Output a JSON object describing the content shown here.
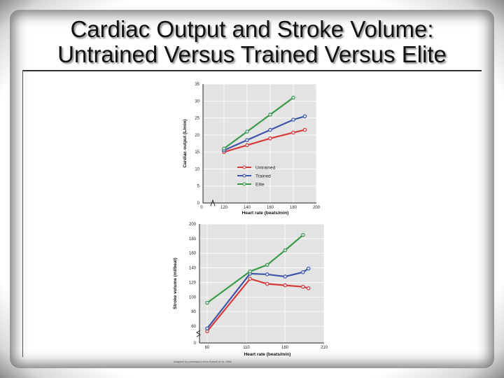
{
  "slide": {
    "title_line1": "Cardiac Output and Stroke Volume:",
    "title_line2": "Untrained Versus Trained Versus Elite",
    "credit": "Adapted by permission from Rowell et al. 1986"
  },
  "colors": {
    "untrained": "#d63a3a",
    "trained": "#3f55a8",
    "elite": "#3b9a4a",
    "plot_bg": "#e3e3e3"
  },
  "chart_data": [
    {
      "type": "line",
      "xlabel": "Heart rate (beats/min)",
      "ylabel": "Cardiac output (L/min)",
      "xlim": [
        100,
        200
      ],
      "ylim": [
        0,
        35
      ],
      "x_ticks": [
        "0",
        "120",
        "140",
        "160",
        "180",
        "200"
      ],
      "y_ticks": [
        "0",
        "5",
        "10",
        "15",
        "20",
        "25",
        "30",
        "35"
      ],
      "axis_break": true,
      "grid": true,
      "legend_position": "center",
      "series": [
        {
          "name": "Untrained",
          "color": "#d63a3a",
          "points": [
            [
              120,
              15.0
            ],
            [
              140,
              17.0
            ],
            [
              160,
              19.0
            ],
            [
              180,
              20.7
            ],
            [
              190,
              21.5
            ]
          ]
        },
        {
          "name": "Trained",
          "color": "#3f55a8",
          "points": [
            [
              120,
              15.5
            ],
            [
              140,
              18.5
            ],
            [
              160,
              21.5
            ],
            [
              180,
              24.5
            ],
            [
              190,
              25.5
            ]
          ]
        },
        {
          "name": "Elite",
          "color": "#3b9a4a",
          "points": [
            [
              120,
              16.0
            ],
            [
              140,
              21.0
            ],
            [
              160,
              26.0
            ],
            [
              180,
              31.0
            ]
          ]
        }
      ]
    },
    {
      "type": "line",
      "xlabel": "Heart rate (beats/min)",
      "ylabel": "Stroke volume (ml/beat)",
      "xlim": [
        50,
        210
      ],
      "ylim": [
        0,
        200
      ],
      "x_ticks": [
        "60",
        "110",
        "160",
        "210"
      ],
      "y_ticks": [
        "0",
        "60",
        "80",
        "100",
        "120",
        "140",
        "160",
        "180",
        "200"
      ],
      "axis_break": true,
      "grid": true,
      "series": [
        {
          "name": "Untrained",
          "color": "#d63a3a",
          "points": [
            [
              60,
              53
            ],
            [
              115,
              125
            ],
            [
              137,
              118
            ],
            [
              160,
              116
            ],
            [
              183,
              114
            ],
            [
              190,
              112
            ]
          ]
        },
        {
          "name": "Trained",
          "color": "#3f55a8",
          "points": [
            [
              60,
              57
            ],
            [
              115,
              132
            ],
            [
              137,
              131
            ],
            [
              160,
              128
            ],
            [
              183,
              134
            ],
            [
              190,
              139
            ]
          ]
        },
        {
          "name": "Elite",
          "color": "#3b9a4a",
          "points": [
            [
              60,
              92
            ],
            [
              115,
              135
            ],
            [
              137,
              144
            ],
            [
              160,
              164
            ],
            [
              183,
              185
            ]
          ]
        }
      ]
    }
  ]
}
